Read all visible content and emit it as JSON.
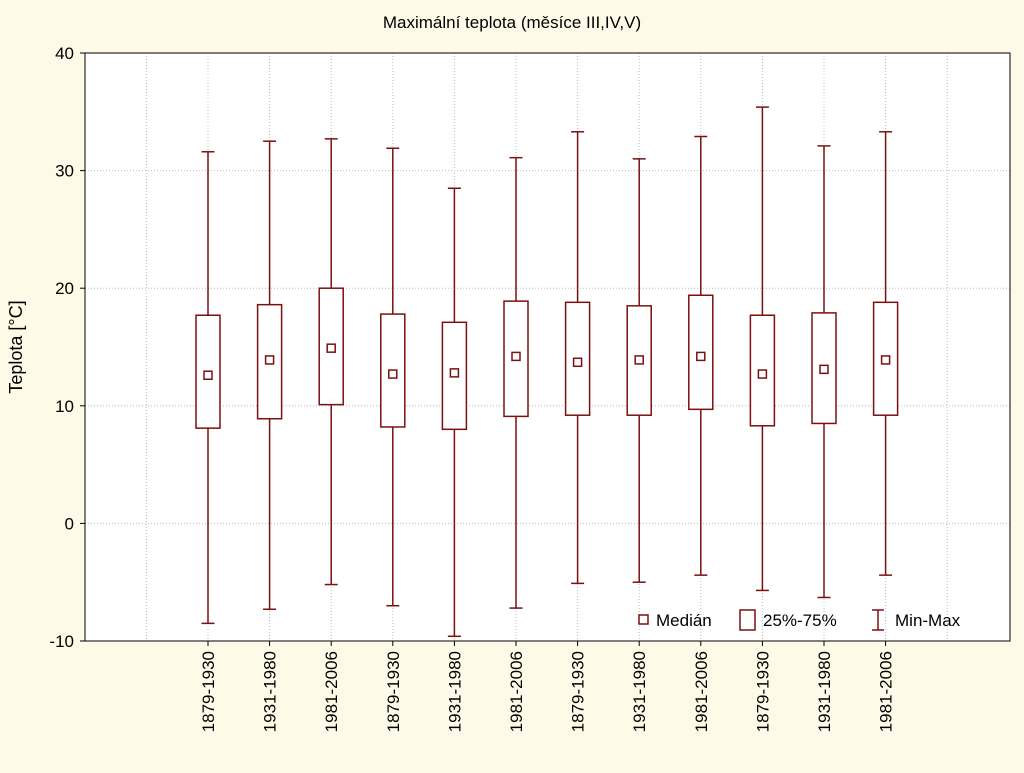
{
  "chart_data": {
    "type": "boxplot",
    "title": "Maximální teplota (měsíce III,IV,V)",
    "xlabel": "",
    "ylabel": "Teplota [°C]",
    "ylim": [
      -10,
      40
    ],
    "yticks": [
      -10,
      0,
      10,
      20,
      30,
      40
    ],
    "grid": true,
    "legend_position": "bottom-right",
    "colors": {
      "box": "#7b1010",
      "plot_background": "#ffffff",
      "page_background": "#fdfbe8",
      "grid": "#bcbcbc"
    },
    "legend": [
      {
        "marker": "median-square",
        "label": "Medián"
      },
      {
        "marker": "box",
        "label": "25%-75%"
      },
      {
        "marker": "whisker",
        "label": "Min-Max"
      }
    ],
    "categories": [
      "1879-1930",
      "1931-1980",
      "1981-2006",
      "1879-1930",
      "1931-1980",
      "1981-2006",
      "1879-1930",
      "1931-1980",
      "1981-2006",
      "1879-1930",
      "1931-1980",
      "1981-2006"
    ],
    "series": [
      {
        "category": "1879-1930",
        "min": -8.5,
        "q1": 8.1,
        "median": 12.6,
        "q3": 17.7,
        "max": 31.6
      },
      {
        "category": "1931-1980",
        "min": -7.3,
        "q1": 8.9,
        "median": 13.9,
        "q3": 18.6,
        "max": 32.5
      },
      {
        "category": "1981-2006",
        "min": -5.2,
        "q1": 10.1,
        "median": 14.9,
        "q3": 20.0,
        "max": 32.7
      },
      {
        "category": "1879-1930",
        "min": -7.0,
        "q1": 8.2,
        "median": 12.7,
        "q3": 17.8,
        "max": 31.9
      },
      {
        "category": "1931-1980",
        "min": -9.6,
        "q1": 8.0,
        "median": 12.8,
        "q3": 17.1,
        "max": 28.5
      },
      {
        "category": "1981-2006",
        "min": -7.2,
        "q1": 9.1,
        "median": 14.2,
        "q3": 18.9,
        "max": 31.1
      },
      {
        "category": "1879-1930",
        "min": -5.1,
        "q1": 9.2,
        "median": 13.7,
        "q3": 18.8,
        "max": 33.3
      },
      {
        "category": "1931-1980",
        "min": -5.0,
        "q1": 9.2,
        "median": 13.9,
        "q3": 18.5,
        "max": 31.0
      },
      {
        "category": "1981-2006",
        "min": -4.4,
        "q1": 9.7,
        "median": 14.2,
        "q3": 19.4,
        "max": 32.9
      },
      {
        "category": "1879-1930",
        "min": -5.7,
        "q1": 8.3,
        "median": 12.7,
        "q3": 17.7,
        "max": 35.4
      },
      {
        "category": "1931-1980",
        "min": -6.3,
        "q1": 8.5,
        "median": 13.1,
        "q3": 17.9,
        "max": 32.1
      },
      {
        "category": "1981-2006",
        "min": -4.4,
        "q1": 9.2,
        "median": 13.9,
        "q3": 18.8,
        "max": 33.3
      }
    ]
  }
}
